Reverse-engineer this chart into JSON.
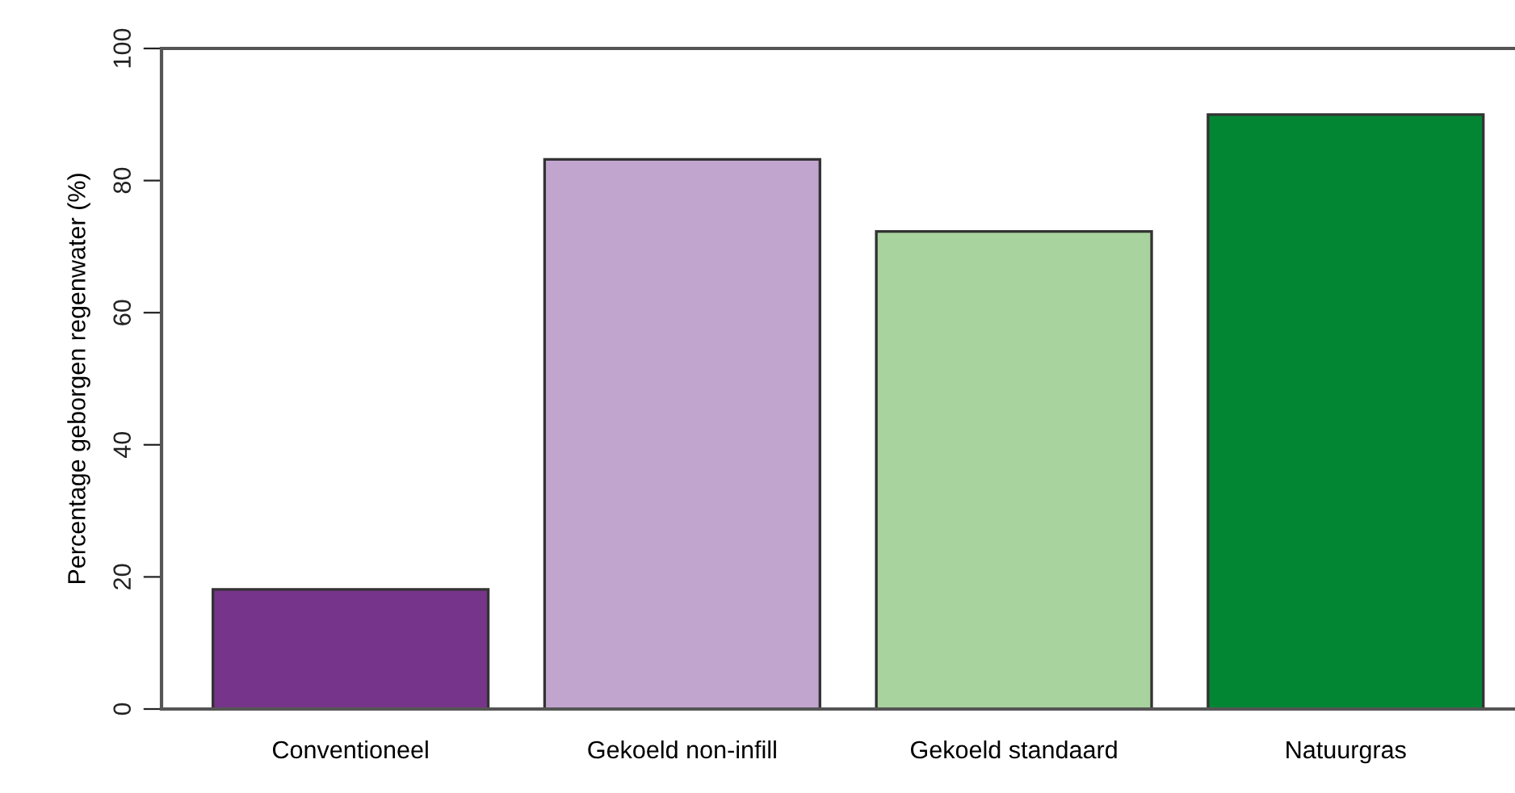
{
  "chart_data": {
    "type": "bar",
    "ylabel": "Percentage geborgen regenwater (%)",
    "categories": [
      "Conventioneel",
      "Gekoeld non-infill",
      "Gekoeld standaard",
      "Natuurgras"
    ],
    "values": [
      18.1,
      83.2,
      72.3,
      90.0
    ],
    "colors": [
      "#76358a",
      "#c2a5cf",
      "#a9d39e",
      "#038634"
    ],
    "ylim": [
      0,
      100
    ],
    "yticks": [
      0,
      20,
      40,
      60,
      80,
      100
    ],
    "grid": false,
    "legend": false
  }
}
